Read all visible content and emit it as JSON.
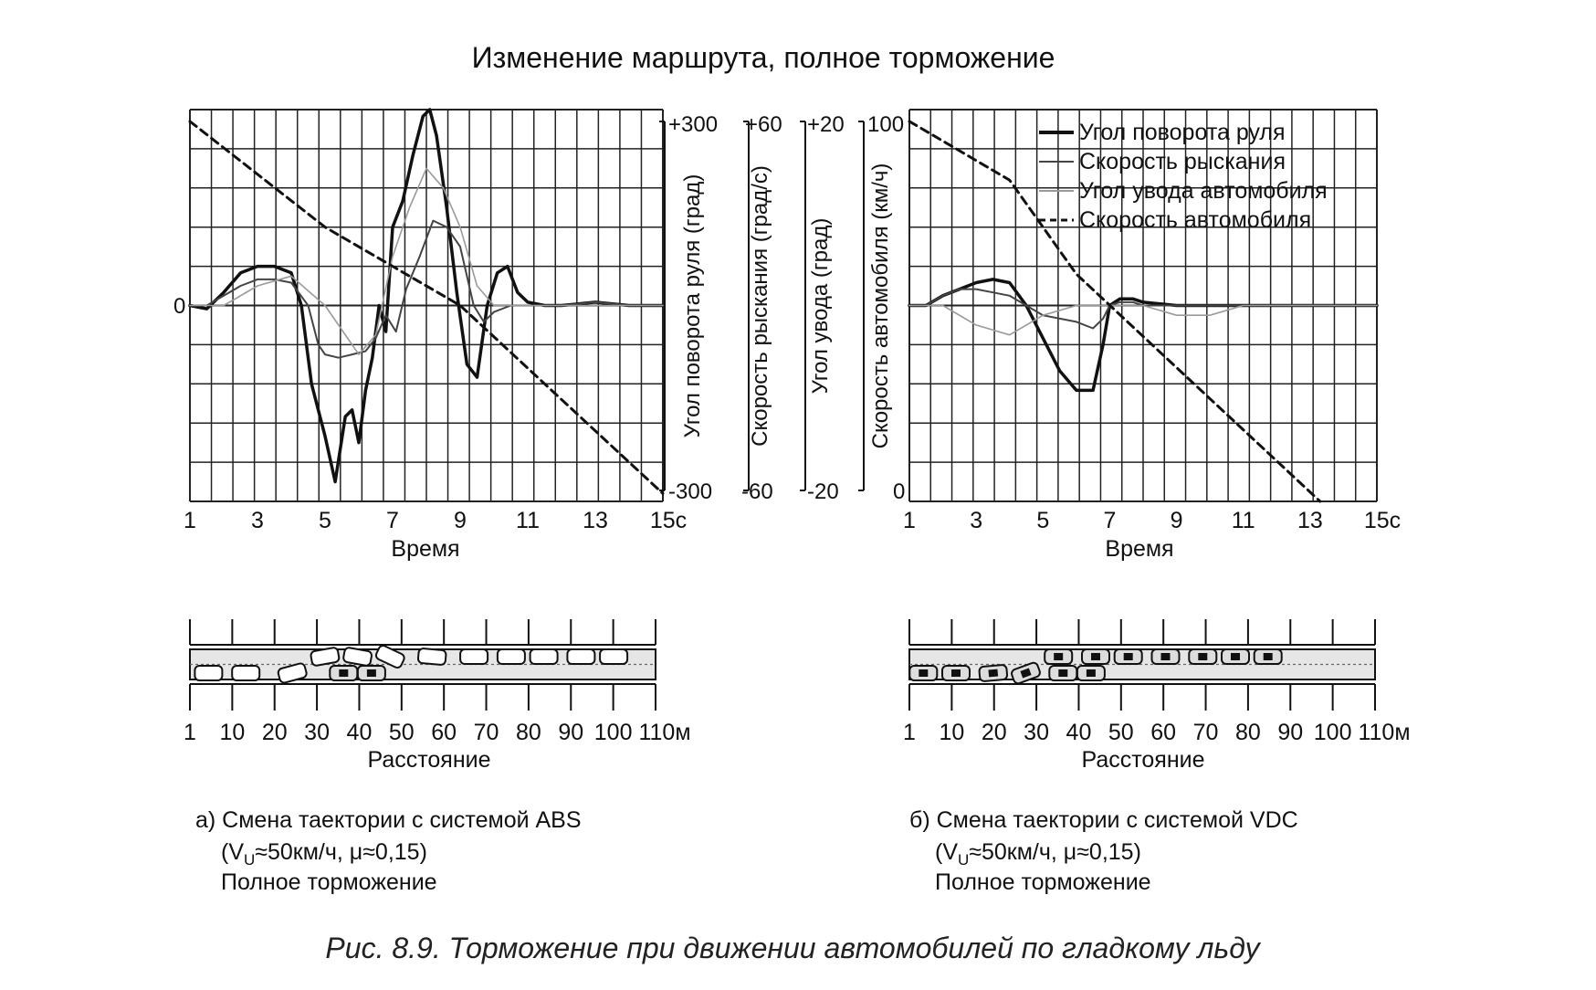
{
  "title": "Изменение маршрута, полное торможение",
  "axes": {
    "time_label": "Время",
    "time_ticks": [
      "1",
      "3",
      "5",
      "7",
      "9",
      "11",
      "13",
      "15с"
    ],
    "distance_label": "Расстояние",
    "distance_ticks": [
      "1",
      "10",
      "20",
      "30",
      "40",
      "50",
      "60",
      "70",
      "80",
      "90",
      "100",
      "110м"
    ],
    "zero_label": "0",
    "y_axes": [
      {
        "label": "Угол поворота руля (град)",
        "top": "+300",
        "bottom": "-300"
      },
      {
        "label": "Скорость рыскания (град/с)",
        "top": "+60",
        "bottom": "-60"
      },
      {
        "label": "Угол увода (град)",
        "top": "+20",
        "bottom": "-20"
      },
      {
        "label": "Скорость автомобиля (км/ч)",
        "top": "100",
        "bottom": "0"
      }
    ]
  },
  "legend": [
    {
      "name": "Угол поворота руля",
      "style": "solid-thick"
    },
    {
      "name": "Скорость рыскания",
      "style": "solid-thin"
    },
    {
      "name": "Угол увода автомобиля",
      "style": "solid-light"
    },
    {
      "name": "Скорость автомобиля",
      "style": "dashed"
    }
  ],
  "panels": [
    {
      "id": "a",
      "caption_line1": "а) Смена таектории с системой ABS",
      "caption_line2_pre": "(V",
      "caption_line2_sub": "U",
      "caption_line2_post": "≈50км/ч, μ≈0,15)",
      "caption_line3": "Полное торможение"
    },
    {
      "id": "b",
      "caption_line1": "б) Смена таектории с системой VDC",
      "caption_line2_pre": "(V",
      "caption_line2_sub": "U",
      "caption_line2_post": "≈50км/ч, μ≈0,15)",
      "caption_line3": "Полное торможение"
    }
  ],
  "figure_caption": "Рис. 8.9. Торможение при движении автомобилей по гладкому льду",
  "chart_data": [
    {
      "type": "line",
      "panel": "a",
      "xlim": [
        1,
        15
      ],
      "series": [
        {
          "name": "Угол поворота руля",
          "unit": "град",
          "ylim": [
            -300,
            300
          ],
          "x": [
            1,
            1.5,
            2,
            2.5,
            3,
            3.5,
            4,
            4.3,
            4.6,
            5,
            5.3,
            5.6,
            5.8,
            6,
            6.2,
            6.4,
            6.6,
            6.8,
            7,
            7.3,
            7.6,
            7.9,
            8.1,
            8.3,
            8.6,
            8.9,
            9.2,
            9.5,
            9.8,
            10.1,
            10.4,
            10.7,
            11,
            11.5,
            12,
            13,
            14,
            15
          ],
          "y": [
            0,
            -5,
            20,
            50,
            60,
            60,
            50,
            0,
            -120,
            -200,
            -270,
            -170,
            -160,
            -210,
            -130,
            -80,
            0,
            -40,
            120,
            160,
            230,
            290,
            300,
            260,
            150,
            20,
            -90,
            -110,
            0,
            50,
            60,
            20,
            5,
            0,
            0,
            5,
            0,
            0
          ]
        },
        {
          "name": "Скорость рыскания",
          "unit": "град/с",
          "ylim": [
            -60,
            60
          ],
          "x": [
            1,
            1.5,
            2,
            2.5,
            3,
            3.5,
            4,
            4.5,
            4.8,
            5,
            5.4,
            5.8,
            6.2,
            6.5,
            6.8,
            7.1,
            7.4,
            7.8,
            8.2,
            8.6,
            9,
            9.4,
            9.7,
            10,
            10.5,
            11,
            12,
            13,
            14,
            15
          ],
          "y": [
            0,
            0,
            3,
            6,
            8,
            8,
            7,
            0,
            -12,
            -15,
            -16,
            -15,
            -14,
            -10,
            -3,
            -8,
            5,
            15,
            26,
            24,
            18,
            0,
            -5,
            -2,
            0,
            0,
            0,
            1,
            0,
            0
          ]
        },
        {
          "name": "Угол увода автомобиля",
          "unit": "град",
          "ylim": [
            -20,
            20
          ],
          "x": [
            1,
            2,
            3,
            4,
            5,
            6,
            6.5,
            7,
            7.5,
            8,
            8.5,
            9,
            9.5,
            10,
            10.5,
            11,
            12,
            13,
            14,
            15
          ],
          "y": [
            0,
            0,
            2,
            3,
            0,
            -5,
            -3,
            5,
            10,
            14,
            12,
            8,
            2,
            0,
            0,
            0,
            0,
            0,
            0,
            0
          ]
        },
        {
          "name": "Скорость автомобиля",
          "unit": "км/ч",
          "ylim": [
            0,
            100
          ],
          "x": [
            1,
            5,
            9,
            15
          ],
          "y": [
            97,
            70,
            50,
            2
          ]
        }
      ]
    },
    {
      "type": "line",
      "panel": "b",
      "xlim": [
        1,
        15
      ],
      "series": [
        {
          "name": "Угол поворота руля",
          "unit": "град",
          "ylim": [
            -300,
            300
          ],
          "x": [
            1,
            1.5,
            2,
            2.5,
            3,
            3.5,
            4,
            4.5,
            5,
            5.5,
            6,
            6.5,
            6.8,
            7,
            7.3,
            7.7,
            8,
            9,
            10,
            11,
            12,
            13,
            14,
            15
          ],
          "y": [
            0,
            0,
            15,
            25,
            35,
            40,
            35,
            0,
            -50,
            -100,
            -130,
            -130,
            -60,
            0,
            10,
            10,
            5,
            0,
            0,
            0,
            0,
            0,
            0,
            0
          ]
        },
        {
          "name": "Скорость рыскания",
          "unit": "град/с",
          "ylim": [
            -60,
            60
          ],
          "x": [
            1,
            1.5,
            2,
            2.5,
            3,
            3.5,
            4,
            5,
            6,
            6.5,
            6.8,
            7,
            7.3,
            7.7,
            8,
            9,
            10,
            11,
            12,
            13,
            14,
            15
          ],
          "y": [
            0,
            0,
            3,
            5,
            5,
            4,
            3,
            -3,
            -5,
            -7,
            -4,
            0,
            1,
            1,
            0,
            0,
            0,
            0,
            0,
            0,
            0,
            0
          ]
        },
        {
          "name": "Угол увода автомобиля",
          "unit": "град",
          "ylim": [
            -20,
            20
          ],
          "x": [
            1,
            2,
            3,
            4,
            5,
            6,
            7,
            8,
            9,
            10,
            11,
            12,
            13,
            14,
            15
          ],
          "y": [
            0,
            0,
            -2,
            -3,
            -1,
            0,
            0,
            0,
            -1,
            -1,
            0,
            0,
            0,
            0,
            0
          ]
        },
        {
          "name": "Скорость автомобиля",
          "unit": "км/ч",
          "ylim": [
            0,
            100
          ],
          "x": [
            1,
            4,
            6,
            13.3
          ],
          "y": [
            97,
            82,
            58,
            0
          ]
        }
      ]
    }
  ]
}
